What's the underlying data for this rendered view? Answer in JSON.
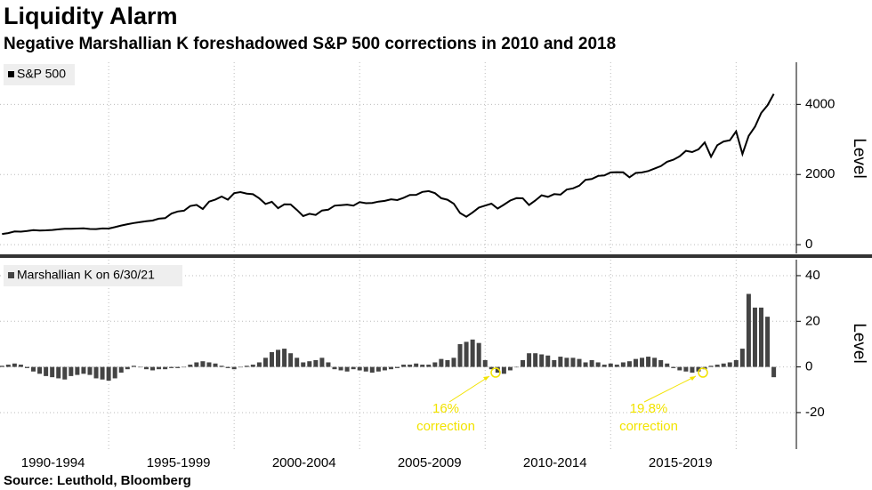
{
  "title": "Liquidity Alarm",
  "subtitle": "Negative Marshallian K foreshadowed S&P 500 corrections in 2010 and 2018",
  "source": "Source: Leuthold, Bloomberg",
  "x_axis": {
    "xlim": [
      1990.67,
      2022.4
    ],
    "xticks": [
      {
        "value": 1992.5,
        "label": "1990-1994"
      },
      {
        "value": 1997.5,
        "label": "1995-1999"
      },
      {
        "value": 2002.5,
        "label": "2000-2004"
      },
      {
        "value": 2007.5,
        "label": "2005-2009"
      },
      {
        "value": 2012.5,
        "label": "2010-2014"
      },
      {
        "value": 2017.5,
        "label": "2015-2019"
      }
    ],
    "xgrid": [
      1995,
      2000,
      2005,
      2010,
      2015,
      2020
    ]
  },
  "chart_data": [
    {
      "type": "line",
      "y_label": "Level",
      "ylim": [
        -250,
        5200
      ],
      "yticks": [
        0,
        2000,
        4000
      ],
      "grid": true,
      "x": [
        1990.75,
        1991,
        1991.25,
        1991.5,
        1991.75,
        1992,
        1992.25,
        1992.5,
        1992.75,
        1993,
        1993.25,
        1993.5,
        1993.75,
        1994,
        1994.25,
        1994.5,
        1994.75,
        1995,
        1995.25,
        1995.5,
        1995.75,
        1996,
        1996.25,
        1996.5,
        1996.75,
        1997,
        1997.25,
        1997.5,
        1997.75,
        1998,
        1998.25,
        1998.5,
        1998.75,
        1999,
        1999.25,
        1999.5,
        1999.75,
        2000,
        2000.25,
        2000.5,
        2000.75,
        2001,
        2001.25,
        2001.5,
        2001.75,
        2002,
        2002.25,
        2002.5,
        2002.75,
        2003,
        2003.25,
        2003.5,
        2003.75,
        2004,
        2004.25,
        2004.5,
        2004.75,
        2005,
        2005.25,
        2005.5,
        2005.75,
        2006,
        2006.25,
        2006.5,
        2006.75,
        2007,
        2007.25,
        2007.5,
        2007.75,
        2008,
        2008.25,
        2008.5,
        2008.75,
        2009,
        2009.25,
        2009.5,
        2009.75,
        2010,
        2010.25,
        2010.5,
        2010.75,
        2011,
        2011.25,
        2011.5,
        2011.75,
        2012,
        2012.25,
        2012.5,
        2012.75,
        2013,
        2013.25,
        2013.5,
        2013.75,
        2014,
        2014.25,
        2014.5,
        2014.75,
        2015,
        2015.25,
        2015.5,
        2015.75,
        2016,
        2016.25,
        2016.5,
        2016.75,
        2017,
        2017.25,
        2017.5,
        2017.75,
        2018,
        2018.25,
        2018.5,
        2018.75,
        2019,
        2019.25,
        2019.5,
        2019.75,
        2020,
        2020.25,
        2020.5,
        2020.75,
        2021,
        2021.25,
        2021.5
      ],
      "series": [
        {
          "name": "S&P 500",
          "color": "#000000",
          "values": [
            306,
            330,
            375,
            371,
            388,
            417,
            404,
            408,
            418,
            436,
            452,
            451,
            459,
            466,
            446,
            444,
            463,
            459,
            501,
            545,
            584,
            616,
            645,
            671,
            687,
            741,
            757,
            885,
            947,
            970,
            1102,
            1134,
            1017,
            1229,
            1286,
            1373,
            1283,
            1469,
            1499,
            1455,
            1437,
            1320,
            1160,
            1224,
            1041,
            1148,
            1147,
            990,
            815,
            880,
            848,
            975,
            996,
            1112,
            1126,
            1141,
            1115,
            1212,
            1181,
            1191,
            1229,
            1248,
            1295,
            1270,
            1336,
            1418,
            1421,
            1503,
            1527,
            1468,
            1323,
            1280,
            1166,
            903,
            798,
            919,
            1057,
            1115,
            1169,
            1031,
            1141,
            1258,
            1326,
            1321,
            1131,
            1258,
            1408,
            1362,
            1441,
            1426,
            1569,
            1606,
            1682,
            1848,
            1872,
            1960,
            1972,
            2059,
            2068,
            2063,
            1920,
            2044,
            2060,
            2099,
            2168,
            2239,
            2363,
            2423,
            2519,
            2674,
            2641,
            2718,
            2914,
            2507,
            2834,
            2942,
            2977,
            3231,
            2585,
            3100,
            3363,
            3756,
            3973,
            4298
          ]
        }
      ]
    },
    {
      "type": "bar",
      "y_label": "Level",
      "ylim": [
        -36,
        47
      ],
      "yticks": [
        40,
        20,
        0,
        -20
      ],
      "grid": true,
      "x": [
        1990.75,
        1991,
        1991.25,
        1991.5,
        1991.75,
        1992,
        1992.25,
        1992.5,
        1992.75,
        1993,
        1993.25,
        1993.5,
        1993.75,
        1994,
        1994.25,
        1994.5,
        1994.75,
        1995,
        1995.25,
        1995.5,
        1995.75,
        1996,
        1996.25,
        1996.5,
        1996.75,
        1997,
        1997.25,
        1997.5,
        1997.75,
        1998,
        1998.25,
        1998.5,
        1998.75,
        1999,
        1999.25,
        1999.5,
        1999.75,
        2000,
        2000.25,
        2000.5,
        2000.75,
        2001,
        2001.25,
        2001.5,
        2001.75,
        2002,
        2002.25,
        2002.5,
        2002.75,
        2003,
        2003.25,
        2003.5,
        2003.75,
        2004,
        2004.25,
        2004.5,
        2004.75,
        2005,
        2005.25,
        2005.5,
        2005.75,
        2006,
        2006.25,
        2006.5,
        2006.75,
        2007,
        2007.25,
        2007.5,
        2007.75,
        2008,
        2008.25,
        2008.5,
        2008.75,
        2009,
        2009.25,
        2009.5,
        2009.75,
        2010,
        2010.25,
        2010.5,
        2010.75,
        2011,
        2011.25,
        2011.5,
        2011.75,
        2012,
        2012.25,
        2012.5,
        2012.75,
        2013,
        2013.25,
        2013.5,
        2013.75,
        2014,
        2014.25,
        2014.5,
        2014.75,
        2015,
        2015.25,
        2015.5,
        2015.75,
        2016,
        2016.25,
        2016.5,
        2016.75,
        2017,
        2017.25,
        2017.5,
        2017.75,
        2018,
        2018.25,
        2018.5,
        2018.75,
        2019,
        2019.25,
        2019.5,
        2019.75,
        2020,
        2020.25,
        2020.5,
        2020.75,
        2021,
        2021.25,
        2021.5
      ],
      "series": [
        {
          "name": "Marshallian K on 6/30/21",
          "color": "#444444",
          "values": [
            0.5,
            1,
            1.5,
            1,
            -0.5,
            -2,
            -3,
            -4,
            -4.5,
            -5,
            -5.5,
            -4,
            -3.5,
            -3,
            -3.5,
            -5,
            -5.5,
            -6,
            -5,
            -2.5,
            -1,
            0.5,
            0,
            -1,
            -1.5,
            -1,
            -1,
            -0.5,
            -0.5,
            0,
            1,
            2,
            2.5,
            2,
            1.5,
            0.5,
            -0.5,
            -1,
            0,
            0.5,
            1,
            2,
            4,
            6.5,
            7.5,
            8,
            6,
            4,
            2,
            2.5,
            3,
            4,
            2,
            -1,
            -1.5,
            -2,
            -1,
            -1.5,
            -2,
            -2.5,
            -2,
            -1.5,
            -1,
            -0.5,
            1,
            1,
            1.5,
            1,
            1,
            2,
            3.5,
            3,
            4,
            10,
            11,
            12,
            10.5,
            3,
            -1,
            -2.5,
            -3,
            -1.5,
            0,
            3,
            6,
            6,
            5.5,
            5,
            3,
            4.5,
            4,
            4,
            3.5,
            2,
            3,
            2,
            1,
            1.5,
            1,
            2,
            2.5,
            3.5,
            4,
            4.5,
            4,
            3,
            1.5,
            -0.5,
            -1.5,
            -2,
            -2.5,
            -2,
            -1,
            0.5,
            1,
            1.5,
            2,
            3,
            8,
            32,
            26,
            26,
            22,
            -4.5
          ]
        }
      ],
      "annotations": [
        {
          "lines": [
            "16%",
            "correction"
          ]
        },
        {
          "lines": [
            "19.8%",
            "correction"
          ]
        }
      ]
    }
  ]
}
